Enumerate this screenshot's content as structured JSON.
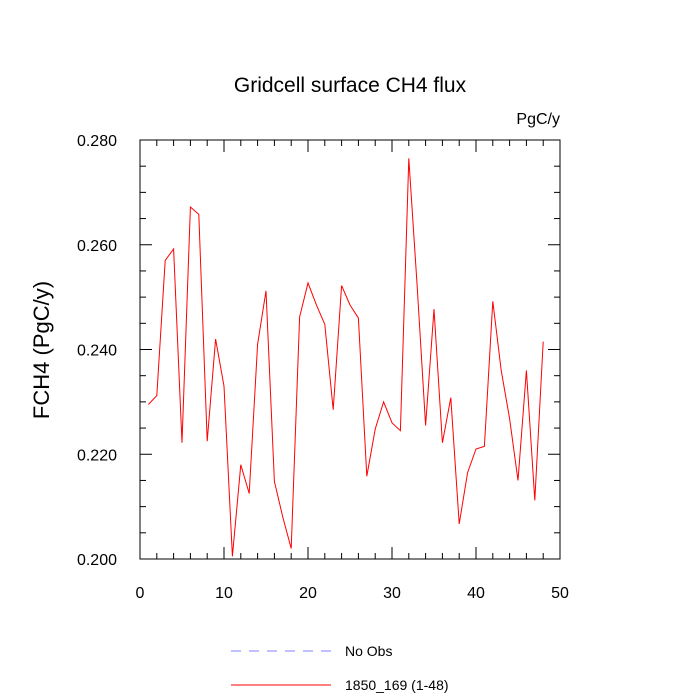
{
  "chart_data": {
    "type": "line",
    "title": "Gridcell surface CH4 flux",
    "units": "PgC/y",
    "ylabel": "FCH4  (PgC/y)",
    "xlabel": "",
    "xlim": [
      0,
      50
    ],
    "ylim": [
      0.2,
      0.28
    ],
    "x_ticks": [
      0,
      10,
      20,
      30,
      40,
      50
    ],
    "x_tick_labels": [
      "0",
      "10",
      "20",
      "30",
      "40",
      "50"
    ],
    "y_ticks": [
      0.2,
      0.22,
      0.24,
      0.26,
      0.28
    ],
    "y_tick_labels": [
      "0.200",
      "0.220",
      "0.240",
      "0.260",
      "0.280"
    ],
    "grid": false,
    "legend_position": "bottom",
    "series": [
      {
        "name": "No Obs",
        "color": "#8080ff",
        "dash": "dashed",
        "x": [],
        "values": []
      },
      {
        "name": "1850_169 (1-48)",
        "color": "#ff0000",
        "dash": "solid",
        "x": [
          1,
          2,
          3,
          4,
          5,
          6,
          7,
          8,
          9,
          10,
          11,
          12,
          13,
          14,
          15,
          16,
          17,
          18,
          19,
          20,
          21,
          22,
          23,
          24,
          25,
          26,
          27,
          28,
          29,
          30,
          31,
          32,
          33,
          34,
          35,
          36,
          37,
          38,
          39,
          40,
          41,
          42,
          43,
          44,
          45,
          46,
          47,
          48
        ],
        "values": [
          0.2295,
          0.2312,
          0.257,
          0.2592,
          0.2222,
          0.2672,
          0.2658,
          0.2225,
          0.242,
          0.233,
          0.2005,
          0.218,
          0.2125,
          0.241,
          0.2512,
          0.2148,
          0.208,
          0.202,
          0.2462,
          0.2527,
          0.2485,
          0.2448,
          0.2285,
          0.2522,
          0.2485,
          0.246,
          0.2158,
          0.2248,
          0.23,
          0.226,
          0.2245,
          0.2765,
          0.252,
          0.2255,
          0.2477,
          0.2222,
          0.2308,
          0.2067,
          0.2165,
          0.221,
          0.2215,
          0.2492,
          0.236,
          0.2268,
          0.215,
          0.236,
          0.2112,
          0.2415
        ]
      }
    ]
  }
}
